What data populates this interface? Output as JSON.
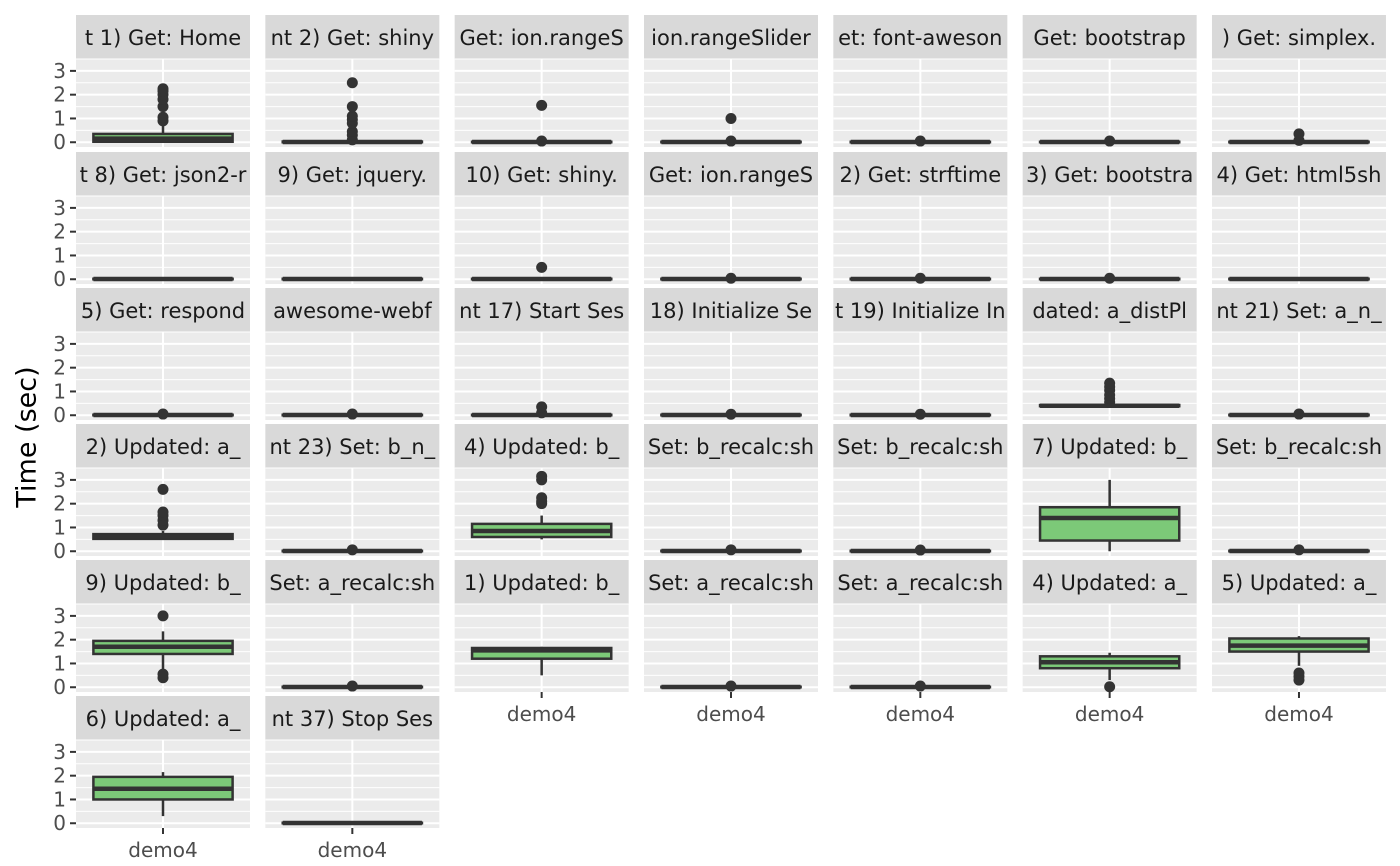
{
  "chart_data": {
    "type": "boxplot",
    "layout": "facet-grid",
    "ylabel": "Time (sec)",
    "ylim": [
      -0.2,
      3.5
    ],
    "y_ticks": [
      0,
      1,
      2,
      3
    ],
    "x_category": "demo4",
    "grid": true,
    "colors": {
      "box_fill": "#7cc978",
      "box_line": "#333333",
      "panel_bg": "#ebebeb",
      "strip_bg": "#d9d9d9",
      "grid": "#ffffff"
    },
    "panels": [
      {
        "label": "t 1) Get: Home",
        "min": 0,
        "q1": 0.02,
        "median": 0.15,
        "q3": 0.35,
        "max": 0.75,
        "outliers": [
          0.9,
          1.05,
          1.5,
          1.8,
          2.0,
          2.15,
          2.25
        ]
      },
      {
        "label": "nt 2) Get: shiny",
        "min": 0,
        "q1": 0,
        "median": 0.01,
        "q3": 0.03,
        "max": 0.05,
        "outliers": [
          0.1,
          0.3,
          0.45,
          0.8,
          0.95,
          1.1,
          1.5,
          2.5
        ]
      },
      {
        "label": "Get: ion.rangeS",
        "min": 0,
        "q1": 0,
        "median": 0.01,
        "q3": 0.02,
        "max": 0.03,
        "outliers": [
          0.05,
          1.55
        ]
      },
      {
        "label": "ion.rangeSlider",
        "min": 0,
        "q1": 0,
        "median": 0.01,
        "q3": 0.02,
        "max": 0.03,
        "outliers": [
          0.05,
          1.0
        ]
      },
      {
        "label": "et: font-aweson",
        "min": 0,
        "q1": 0,
        "median": 0.01,
        "q3": 0.02,
        "max": 0.03,
        "outliers": [
          0.05
        ]
      },
      {
        "label": "Get: bootstrap",
        "min": 0,
        "q1": 0,
        "median": 0.01,
        "q3": 0.02,
        "max": 0.03,
        "outliers": [
          0.05
        ]
      },
      {
        "label": ") Get: simplex.",
        "min": 0,
        "q1": 0,
        "median": 0.01,
        "q3": 0.02,
        "max": 0.03,
        "outliers": [
          0.08,
          0.35
        ]
      },
      {
        "label": "t 8) Get: json2-r",
        "min": 0,
        "q1": 0,
        "median": 0.01,
        "q3": 0.02,
        "max": 0.03,
        "outliers": []
      },
      {
        "label": "9) Get: jquery.",
        "min": 0,
        "q1": 0,
        "median": 0.01,
        "q3": 0.02,
        "max": 0.03,
        "outliers": []
      },
      {
        "label": "10) Get: shiny.",
        "min": 0,
        "q1": 0,
        "median": 0.01,
        "q3": 0.02,
        "max": 0.03,
        "outliers": [
          0.5
        ]
      },
      {
        "label": "Get: ion.rangeS",
        "min": 0,
        "q1": 0,
        "median": 0.01,
        "q3": 0.02,
        "max": 0.03,
        "outliers": [
          0.04
        ]
      },
      {
        "label": "2) Get: strftime",
        "min": 0,
        "q1": 0,
        "median": 0.01,
        "q3": 0.02,
        "max": 0.03,
        "outliers": [
          0.04
        ]
      },
      {
        "label": "3) Get: bootstra",
        "min": 0,
        "q1": 0,
        "median": 0.01,
        "q3": 0.02,
        "max": 0.03,
        "outliers": [
          0.04
        ]
      },
      {
        "label": "4) Get: html5sh",
        "min": 0,
        "q1": 0,
        "median": 0.01,
        "q3": 0.02,
        "max": 0.03,
        "outliers": []
      },
      {
        "label": "5) Get: respond",
        "min": 0,
        "q1": 0,
        "median": 0.01,
        "q3": 0.02,
        "max": 0.03,
        "outliers": [
          0.05
        ]
      },
      {
        "label": "awesome-webf",
        "min": 0,
        "q1": 0,
        "median": 0.01,
        "q3": 0.02,
        "max": 0.03,
        "outliers": [
          0.05
        ]
      },
      {
        "label": "nt 17) Start Ses",
        "min": 0,
        "q1": 0,
        "median": 0.01,
        "q3": 0.02,
        "max": 0.03,
        "outliers": [
          0.1,
          0.35
        ]
      },
      {
        "label": "18) Initialize Se",
        "min": 0,
        "q1": 0,
        "median": 0.01,
        "q3": 0.02,
        "max": 0.03,
        "outliers": [
          0.04
        ]
      },
      {
        "label": "t 19) Initialize In",
        "min": 0,
        "q1": 0,
        "median": 0.01,
        "q3": 0.02,
        "max": 0.03,
        "outliers": [
          0.04
        ]
      },
      {
        "label": "dated: a_distPl",
        "min": 0.36,
        "q1": 0.38,
        "median": 0.4,
        "q3": 0.43,
        "max": 0.48,
        "outliers": [
          0.55,
          0.7,
          0.85,
          1.05,
          1.2,
          1.35
        ]
      },
      {
        "label": "nt 21) Set: a_n_",
        "min": 0,
        "q1": 0,
        "median": 0.01,
        "q3": 0.02,
        "max": 0.03,
        "outliers": [
          0.05
        ]
      },
      {
        "label": "2) Updated: a_",
        "min": 0.5,
        "q1": 0.52,
        "median": 0.62,
        "q3": 0.72,
        "max": 0.85,
        "outliers": [
          1.1,
          1.3,
          1.5,
          1.65,
          2.6
        ]
      },
      {
        "label": "nt 23) Set: b_n_",
        "min": 0,
        "q1": 0,
        "median": 0.01,
        "q3": 0.02,
        "max": 0.03,
        "outliers": [
          0.06
        ]
      },
      {
        "label": "4) Updated: b_",
        "min": 0.5,
        "q1": 0.6,
        "median": 0.85,
        "q3": 1.15,
        "max": 1.5,
        "outliers": [
          2.0,
          2.1,
          2.25,
          3.0,
          3.15
        ]
      },
      {
        "label": "Set: b_recalc:sh",
        "min": 0,
        "q1": 0,
        "median": 0.01,
        "q3": 0.02,
        "max": 0.03,
        "outliers": [
          0.06
        ]
      },
      {
        "label": "Set: b_recalc:sh",
        "min": 0,
        "q1": 0,
        "median": 0.01,
        "q3": 0.02,
        "max": 0.03,
        "outliers": [
          0.05
        ]
      },
      {
        "label": "7) Updated: b_",
        "min": 0,
        "q1": 0.45,
        "median": 1.4,
        "q3": 1.85,
        "max": 3.0,
        "outliers": []
      },
      {
        "label": "Set: b_recalc:sh",
        "min": 0,
        "q1": 0,
        "median": 0.01,
        "q3": 0.02,
        "max": 0.03,
        "outliers": [
          0.06
        ]
      },
      {
        "label": "9) Updated: b_",
        "min": 0.75,
        "q1": 1.4,
        "median": 1.7,
        "q3": 1.95,
        "max": 2.35,
        "outliers": [
          0.4,
          0.55,
          3.0
        ]
      },
      {
        "label": "Set: a_recalc:sh",
        "min": 0,
        "q1": 0,
        "median": 0.01,
        "q3": 0.02,
        "max": 0.03,
        "outliers": [
          0.05
        ]
      },
      {
        "label": "1) Updated: b_",
        "min": 0.5,
        "q1": 1.2,
        "median": 1.55,
        "q3": 1.65,
        "max": 1.7,
        "outliers": []
      },
      {
        "label": "Set: a_recalc:sh",
        "min": 0,
        "q1": 0,
        "median": 0.01,
        "q3": 0.02,
        "max": 0.03,
        "outliers": [
          0.05
        ]
      },
      {
        "label": "Set: a_recalc:sh",
        "min": 0,
        "q1": 0,
        "median": 0.01,
        "q3": 0.02,
        "max": 0.03,
        "outliers": [
          0.05
        ]
      },
      {
        "label": "4) Updated: a_",
        "min": 0.3,
        "q1": 0.8,
        "median": 1.05,
        "q3": 1.3,
        "max": 1.45,
        "outliers": [
          0.02
        ]
      },
      {
        "label": "5) Updated: a_",
        "min": 0.9,
        "q1": 1.5,
        "median": 1.75,
        "q3": 2.05,
        "max": 2.15,
        "outliers": [
          0.3,
          0.45,
          0.6
        ]
      },
      {
        "label": "6) Updated: a_",
        "min": 0.3,
        "q1": 1.0,
        "median": 1.45,
        "q3": 1.95,
        "max": 2.15,
        "outliers": []
      },
      {
        "label": "nt 37) Stop Ses",
        "min": 0,
        "q1": 0,
        "median": 0.01,
        "q3": 0.02,
        "max": 0.03,
        "outliers": []
      }
    ]
  }
}
